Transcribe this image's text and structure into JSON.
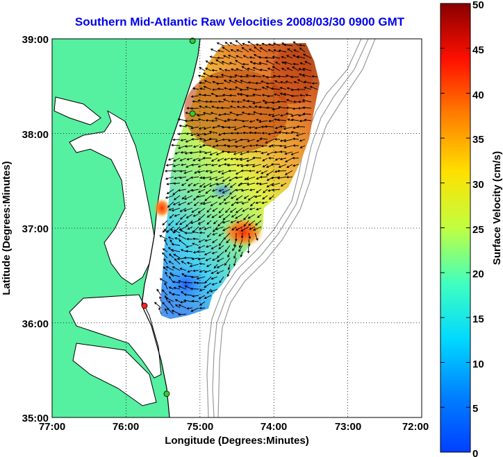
{
  "map": {
    "title": "Southern Mid-Atlantic Raw Velocities 2008/03/30 0900 GMT",
    "xlabel": "Longitude (Degrees:Minutes)",
    "ylabel": "Latitude (Degrees:Minutes)",
    "x_ticks": [
      "77:00",
      "76:00",
      "75:00",
      "74:00",
      "73:00",
      "72:00"
    ],
    "y_ticks": [
      "39:00",
      "38:00",
      "37:00",
      "36:00",
      "35:00"
    ],
    "lon_range": [
      -77,
      -72
    ],
    "lat_range": [
      35,
      39
    ],
    "land_color": "#55f0a0",
    "water_color": "#ffffff",
    "grid": true
  },
  "colorbar": {
    "label": "Surface Velocity (cm/s)",
    "range": [
      0,
      50
    ],
    "ticks": [
      "50",
      "45",
      "40",
      "35",
      "30",
      "25",
      "20",
      "15",
      "10",
      "5",
      "0"
    ]
  },
  "stations": [
    {
      "lon": -75.1,
      "lat": 38.98,
      "color": "#33cc33"
    },
    {
      "lon": -75.1,
      "lat": 38.21,
      "color": "#33cc33"
    },
    {
      "lon": -75.75,
      "lat": 36.18,
      "color": "#ff2222"
    },
    {
      "lon": -75.45,
      "lat": 35.25,
      "color": "#33cc33"
    }
  ]
}
